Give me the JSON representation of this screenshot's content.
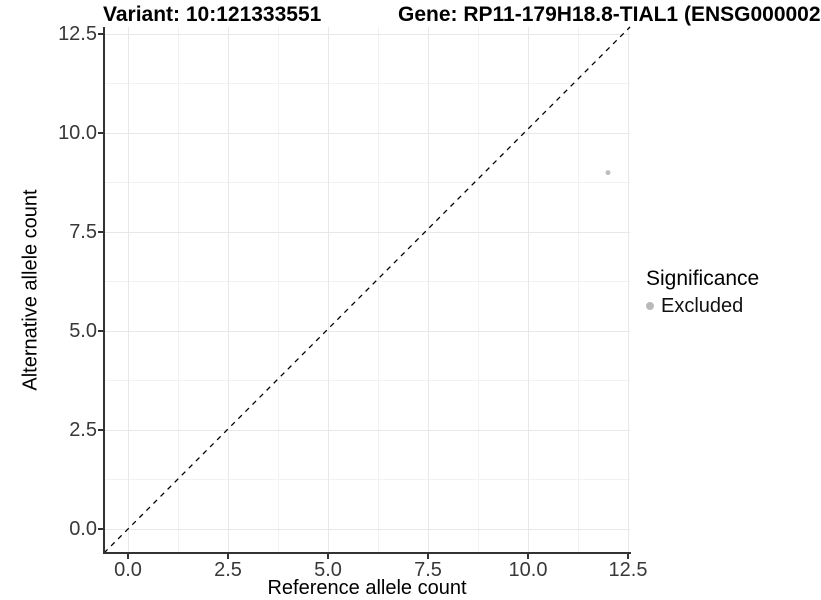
{
  "chart_data": {
    "type": "scatter",
    "title_left": "Variant: 10:121333551",
    "title_right": "Gene: RP11-179H18.8-TIAL1 (ENSG000002",
    "xlabel": "Reference allele count",
    "ylabel": "Alternative allele count",
    "xlim": [
      -0.6,
      12.55
    ],
    "ylim": [
      -0.6,
      12.68
    ],
    "grid": true,
    "ticks": [
      {
        "value": 0,
        "label": "0.0"
      },
      {
        "value": 2.5,
        "label": "2.5"
      },
      {
        "value": 5,
        "label": "5.0"
      },
      {
        "value": 7.5,
        "label": "7.5"
      },
      {
        "value": 10,
        "label": "10.0"
      },
      {
        "value": 12.5,
        "label": "12.5"
      }
    ],
    "minor_ticks": [
      1.25,
      3.75,
      6.25,
      8.75,
      11.25
    ],
    "series": [
      {
        "name": "Excluded",
        "color": "#bebebe",
        "points": [
          {
            "x": 12,
            "y": 9
          }
        ]
      }
    ],
    "abline": {
      "slope": 1,
      "intercept": 0,
      "style": "dashed",
      "color": "#000000"
    },
    "legend": {
      "position": "right",
      "title": "Significance",
      "items": [
        {
          "label": "Excluded",
          "color": "#b9b9b9"
        }
      ]
    },
    "colors": {
      "axis_line": "#333333",
      "tick_label": "#383838",
      "grid_major": "#e8e8e8",
      "grid_minor": "#f2f2f2",
      "background": "#ffffff"
    }
  }
}
